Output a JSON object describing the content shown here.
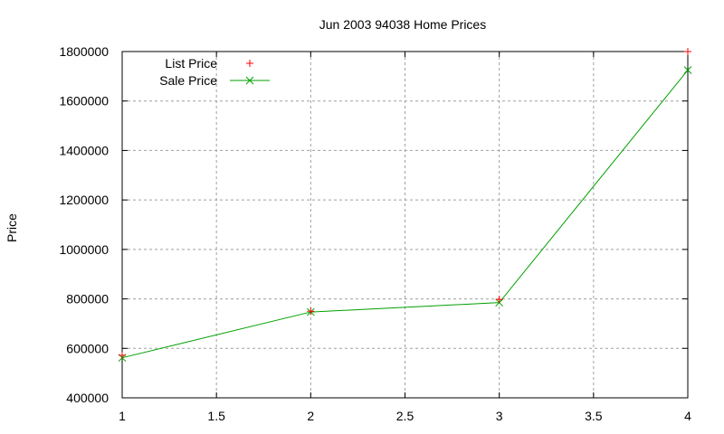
{
  "chart_data": {
    "type": "line",
    "title": "Jun 2003 94038 Home Prices",
    "xlabel": "",
    "ylabel": "Price",
    "xlim": [
      1,
      4
    ],
    "ylim": [
      400000,
      1800000
    ],
    "x_ticks": [
      1,
      1.5,
      2,
      2.5,
      3,
      3.5,
      4
    ],
    "x_tick_labels": [
      "1",
      "1.5",
      "2",
      "2.5",
      "3",
      "3.5",
      "4"
    ],
    "y_ticks": [
      400000,
      600000,
      800000,
      1000000,
      1200000,
      1400000,
      1600000,
      1800000
    ],
    "y_tick_labels": [
      "400000",
      "600000",
      "800000",
      "1000000",
      "1200000",
      "1400000",
      "1600000",
      "1800000"
    ],
    "grid": true,
    "legend_position": "top-left",
    "x": [
      1,
      2,
      3,
      4
    ],
    "series": [
      {
        "name": "List Price",
        "style": "points",
        "marker": "+",
        "color": "#ff0000",
        "values": [
          572000,
          750000,
          798000,
          1800000
        ]
      },
      {
        "name": "Sale Price",
        "style": "linespoints",
        "marker": "x",
        "color": "#00a000",
        "values": [
          562000,
          747000,
          785000,
          1725000
        ]
      }
    ]
  }
}
